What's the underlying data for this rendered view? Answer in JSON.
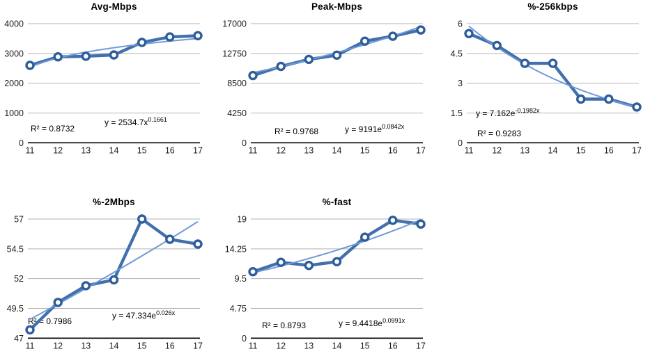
{
  "colors": {
    "series": "#4170ad",
    "marker_ring": "#2e5d9c",
    "marker_fill": "#ffffff",
    "trend": "#6e9ad8",
    "grid": "#b3b3b3",
    "axis": "#000000",
    "tick_text": "#1c1c1c",
    "annot_text": "#000000"
  },
  "chart_data": [
    {
      "type": "line",
      "title": "Avg-Mbps",
      "categories": [
        11,
        12,
        13,
        14,
        15,
        16,
        17
      ],
      "values": [
        2600,
        2885,
        2905,
        2950,
        3370,
        3555,
        3595
      ],
      "y_ticks": [
        4000,
        3000,
        2000,
        1000,
        0
      ],
      "ylim": [
        0,
        4000
      ],
      "xlabel": "",
      "ylabel": "",
      "grid": true,
      "legend": "none",
      "r2": "R² = 0.8732",
      "equation": {
        "base": "y = 2534.7x",
        "exponent": "0.1661"
      },
      "trendline": {
        "kind": "power",
        "a": 2534.7,
        "b": 0.1661
      },
      "annot_pos": {
        "r2": [
          44,
          189
        ],
        "eq": [
          150,
          180
        ]
      }
    },
    {
      "type": "line",
      "title": "Peak-Mbps",
      "categories": [
        11,
        12,
        13,
        14,
        15,
        16,
        17
      ],
      "values": [
        9600,
        10900,
        11900,
        12500,
        14500,
        15200,
        16100
      ],
      "y_ticks": [
        17000,
        12750,
        8500,
        4250,
        0
      ],
      "ylim": [
        0,
        17000
      ],
      "xlabel": "",
      "ylabel": "",
      "grid": true,
      "legend": "none",
      "r2": "R² = 0.9768",
      "equation": {
        "base": "y = 9191e",
        "exponent": "0.0842x"
      },
      "trendline": {
        "kind": "exp",
        "a": 9191,
        "b": 0.0842
      },
      "annot_pos": {
        "r2": [
          74,
          193
        ],
        "eq": [
          175,
          190
        ]
      }
    },
    {
      "type": "line",
      "title": "%-256kbps",
      "categories": [
        11,
        12,
        13,
        14,
        15,
        16,
        17
      ],
      "values": [
        5.5,
        4.9,
        4.0,
        4.0,
        2.2,
        2.2,
        1.8
      ],
      "y_ticks": [
        6,
        4.5,
        3,
        1.5,
        0
      ],
      "ylim": [
        0,
        6
      ],
      "xlabel": "",
      "ylabel": "",
      "grid": true,
      "legend": "none",
      "r2": "R² = 0.9283",
      "equation": {
        "base": "y = 7.162e",
        "exponent": "-0.1982x"
      },
      "trendline": {
        "kind": "exp",
        "a": 7.162,
        "b": -0.1982
      },
      "annot_pos": {
        "r2": [
          55,
          196
        ],
        "eq": [
          53,
          167
        ]
      }
    },
    {
      "type": "line",
      "title": "%-2Mbps",
      "categories": [
        11,
        12,
        13,
        14,
        15,
        16,
        17
      ],
      "values": [
        47.7,
        50.0,
        51.4,
        51.9,
        57.0,
        55.3,
        54.9
      ],
      "y_ticks": [
        57,
        54.5,
        52,
        49.5,
        47
      ],
      "ylim": [
        47,
        57
      ],
      "xlabel": "",
      "ylabel": "",
      "grid": true,
      "legend": "none",
      "r2": "R² = 0.7986",
      "equation": {
        "base": "y = 47.334e",
        "exponent": "0.026x"
      },
      "trendline": {
        "kind": "exp",
        "a": 47.334,
        "b": 0.026
      },
      "annot_pos": {
        "r2": [
          40,
          185
        ],
        "eq": [
          161,
          177
        ]
      }
    },
    {
      "type": "line",
      "title": "%-fast",
      "categories": [
        11,
        12,
        13,
        14,
        15,
        16,
        17
      ],
      "values": [
        10.6,
        12.1,
        11.6,
        12.2,
        16.1,
        18.8,
        18.2
      ],
      "y_ticks": [
        19,
        14.25,
        9.5,
        4.75,
        0
      ],
      "ylim": [
        0,
        19
      ],
      "xlabel": "",
      "ylabel": "",
      "grid": true,
      "legend": "none",
      "r2": "R² = 0.8793",
      "equation": {
        "base": "y = 9.4418e",
        "exponent": "0.0991x"
      },
      "trendline": {
        "kind": "exp",
        "a": 9.4418,
        "b": 0.0991
      },
      "annot_pos": {
        "r2": [
          56,
          191
        ],
        "eq": [
          166,
          188
        ]
      }
    }
  ]
}
